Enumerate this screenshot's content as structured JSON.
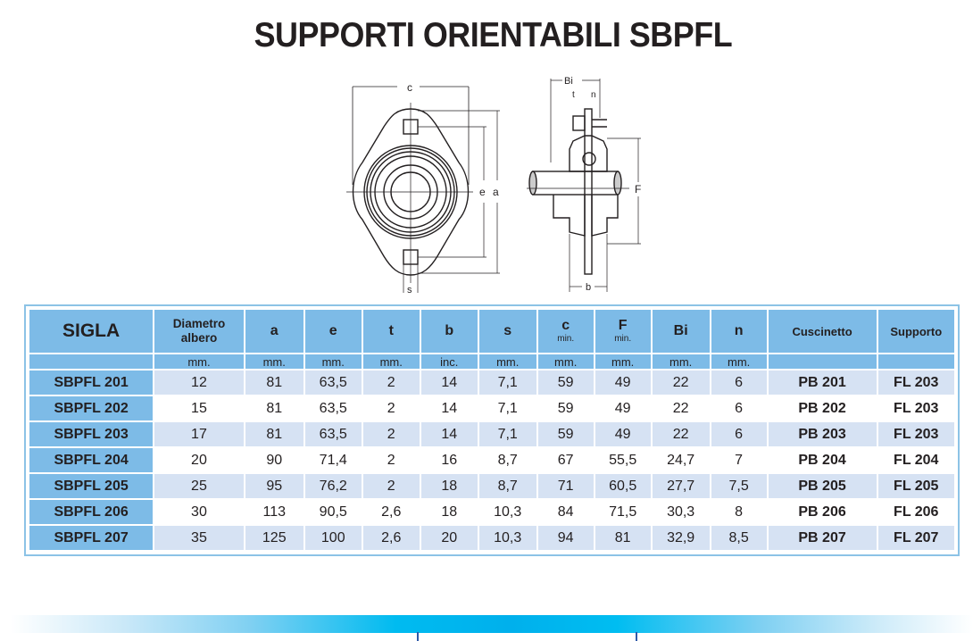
{
  "title": "SUPPORTI ORIENTABILI SBPFL",
  "drawing": {
    "front_view_labels": [
      "c",
      "e",
      "a",
      "s"
    ],
    "side_view_labels": [
      "Bi",
      "t",
      "n",
      "F",
      "b"
    ]
  },
  "table": {
    "headers": [
      {
        "label": "SIGLA",
        "sub": ""
      },
      {
        "label": "Diametro albero",
        "sub": ""
      },
      {
        "label": "a",
        "sub": ""
      },
      {
        "label": "e",
        "sub": ""
      },
      {
        "label": "t",
        "sub": ""
      },
      {
        "label": "b",
        "sub": ""
      },
      {
        "label": "s",
        "sub": ""
      },
      {
        "label": "c",
        "sub": "min."
      },
      {
        "label": "F",
        "sub": "min."
      },
      {
        "label": "Bi",
        "sub": ""
      },
      {
        "label": "n",
        "sub": ""
      },
      {
        "label": "Cuscinetto",
        "sub": ""
      },
      {
        "label": "Supporto",
        "sub": ""
      }
    ],
    "units": [
      "",
      "mm.",
      "mm.",
      "mm.",
      "mm.",
      "inc.",
      "mm.",
      "mm.",
      "mm.",
      "mm.",
      "mm.",
      "",
      ""
    ],
    "rows": [
      [
        "SBPFL 201",
        "12",
        "81",
        "63,5",
        "2",
        "14",
        "7,1",
        "59",
        "49",
        "22",
        "6",
        "PB 201",
        "FL 203"
      ],
      [
        "SBPFL 202",
        "15",
        "81",
        "63,5",
        "2",
        "14",
        "7,1",
        "59",
        "49",
        "22",
        "6",
        "PB 202",
        "FL 203"
      ],
      [
        "SBPFL 203",
        "17",
        "81",
        "63,5",
        "2",
        "14",
        "7,1",
        "59",
        "49",
        "22",
        "6",
        "PB 203",
        "FL 203"
      ],
      [
        "SBPFL 204",
        "20",
        "90",
        "71,4",
        "2",
        "16",
        "8,7",
        "67",
        "55,5",
        "24,7",
        "7",
        "PB 204",
        "FL 204"
      ],
      [
        "SBPFL 205",
        "25",
        "95",
        "76,2",
        "2",
        "18",
        "8,7",
        "71",
        "60,5",
        "27,7",
        "7,5",
        "PB 205",
        "FL 205"
      ],
      [
        "SBPFL 206",
        "30",
        "113",
        "90,5",
        "2,6",
        "18",
        "10,3",
        "84",
        "71,5",
        "30,3",
        "8",
        "PB 206",
        "FL 206"
      ],
      [
        "SBPFL 207",
        "35",
        "125",
        "100",
        "2,6",
        "20",
        "10,3",
        "94",
        "81",
        "32,9",
        "8,5",
        "PB 207",
        "FL 207"
      ]
    ]
  },
  "colors": {
    "header_bg": "#7dbbe7",
    "row_alt_bg": "#d6e2f3",
    "border": "#8cc3e6",
    "bar_center": "#00b0ec"
  }
}
